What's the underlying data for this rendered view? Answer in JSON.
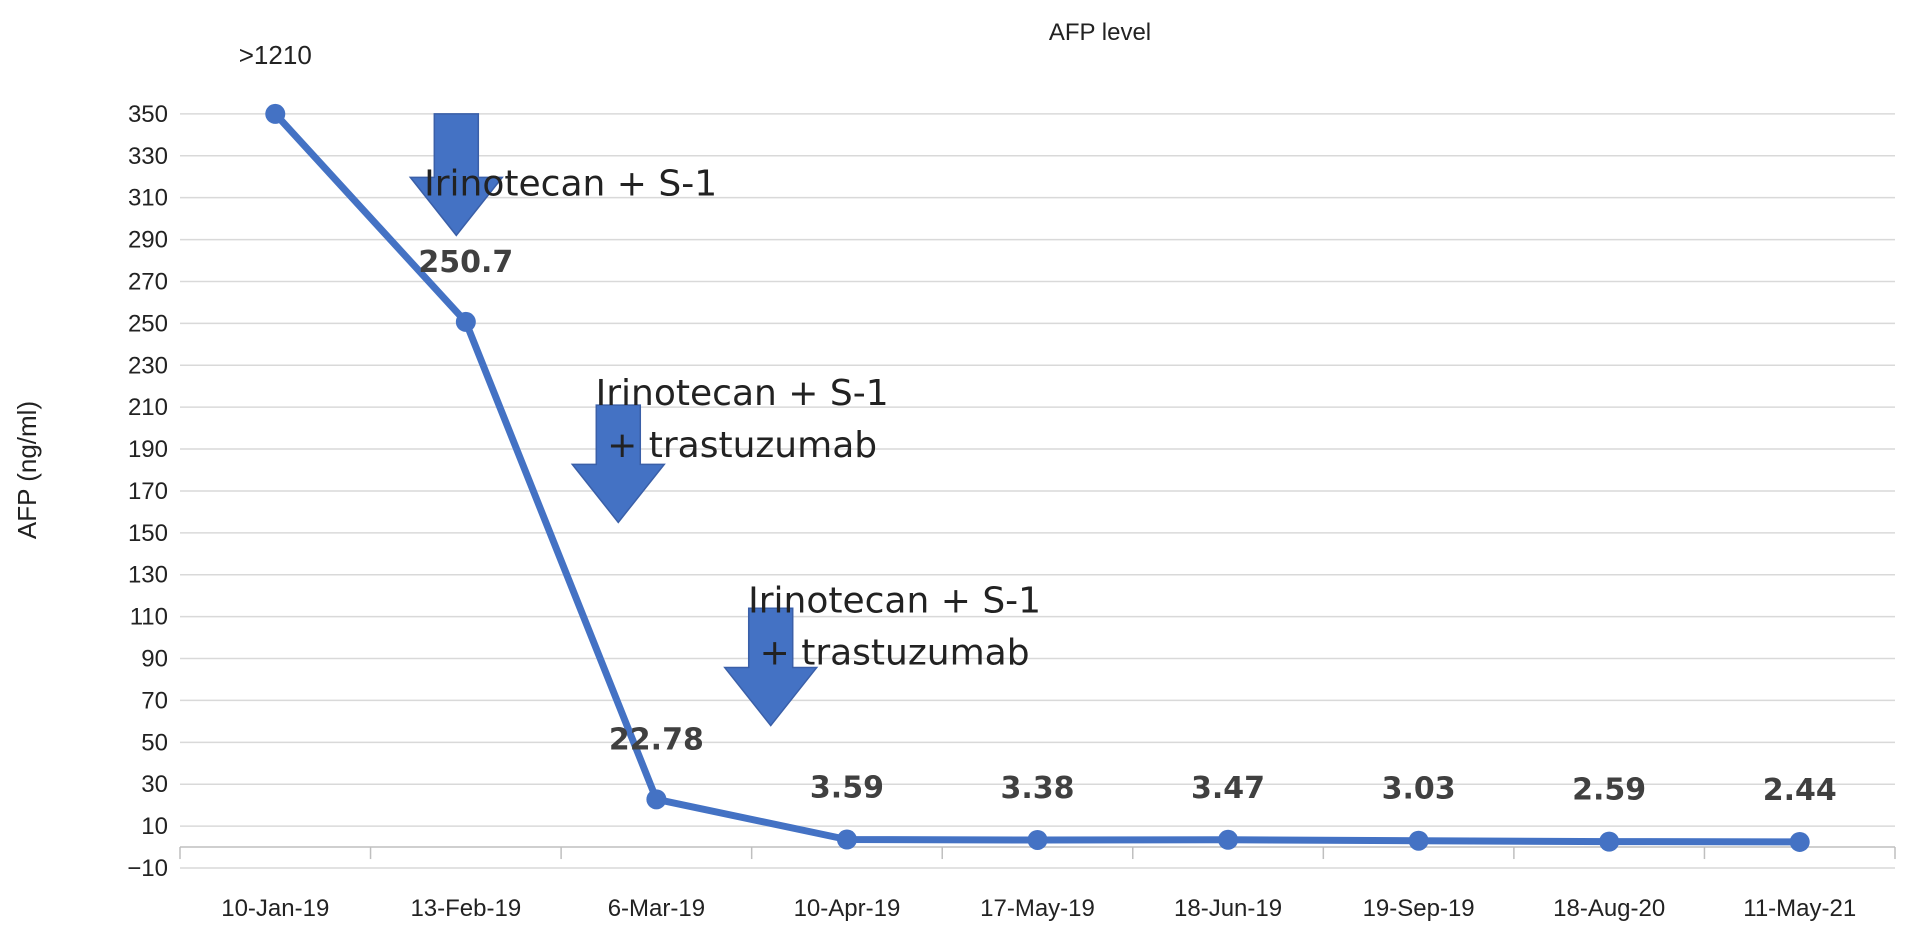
{
  "chart_data": {
    "type": "line",
    "title": "AFP level",
    "xlabel": "",
    "ylabel": "AFP (ng/ml)",
    "categories": [
      "10-Jan-19",
      "13-Feb-19",
      "6-Mar-19",
      "10-Apr-19",
      "17-May-19",
      "18-Jun-19",
      "19-Sep-19",
      "18-Aug-20",
      "11-May-21"
    ],
    "series": [
      {
        "values": [
          350,
          250.7,
          22.78,
          3.59,
          3.38,
          3.47,
          3.03,
          2.59,
          2.44
        ]
      }
    ],
    "data_labels": [
      ">1210",
      "250.7",
      "22.78",
      "3.59",
      "3.38",
      "3.47",
      "3.03",
      "2.59",
      "2.44"
    ],
    "ylim": [
      -10,
      370
    ],
    "yticks": [
      350,
      330,
      310,
      290,
      270,
      250,
      230,
      210,
      190,
      170,
      150,
      130,
      110,
      90,
      70,
      50,
      30,
      10,
      -10
    ],
    "ytick_labels": [
      "350",
      "330",
      "310",
      "290",
      "270",
      "250",
      "230",
      "210",
      "190",
      "170",
      "150",
      "130",
      "110",
      "90",
      "70",
      "50",
      "30",
      "10",
      "−10"
    ],
    "grid": true,
    "legend": "none",
    "line_color": "#4472c4",
    "arrow_color": "#4472c4",
    "annotations": [
      {
        "lines": [
          "Irinotecan + S-1"
        ],
        "arrow_x_index": 0.95,
        "arrow_top": 350,
        "arrow_bottom": 292,
        "text_x_index": 1.55,
        "text_y": 311
      },
      {
        "lines": [
          "Irinotecan + S-1",
          "+ trastuzumab"
        ],
        "arrow_x_index": 1.8,
        "arrow_top": 211,
        "arrow_bottom": 155,
        "text_x_index": 2.45,
        "text_y": 211
      },
      {
        "lines": [
          "Irinotecan + S-1",
          "+ trastuzumab"
        ],
        "arrow_x_index": 2.6,
        "arrow_top": 114,
        "arrow_bottom": 58,
        "text_x_index": 3.25,
        "text_y": 112
      }
    ]
  }
}
